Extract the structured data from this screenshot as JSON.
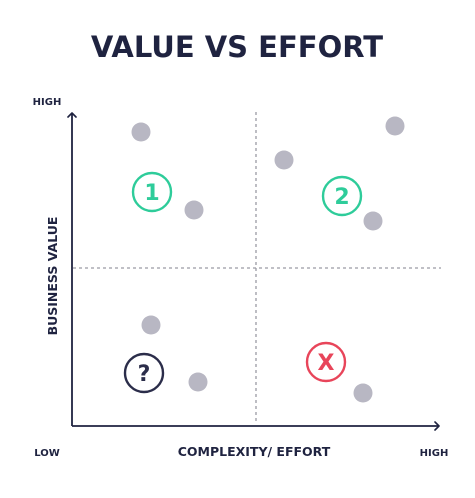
{
  "title": "VALUE VS EFFORT",
  "axes": {
    "y_label": "BUSINESS VALUE",
    "x_label": "COMPLEXITY/ EFFORT",
    "y_high": "HIGH",
    "x_high": "HIGH",
    "origin_low": "LOW"
  },
  "quadrants": [
    {
      "label": "1",
      "quadrant": "top-left",
      "color": "#2ecc9a"
    },
    {
      "label": "2",
      "quadrant": "top-right",
      "color": "#2ecc9a"
    },
    {
      "label": "?",
      "quadrant": "bottom-left",
      "color": "#2b2d4a"
    },
    {
      "label": "X",
      "quadrant": "bottom-right",
      "color": "#e8455a"
    }
  ],
  "colors": {
    "title": "#1f2340",
    "axis": "#1f2340",
    "divider": "#9a9aa3",
    "dot": "#b8b7c3"
  }
}
